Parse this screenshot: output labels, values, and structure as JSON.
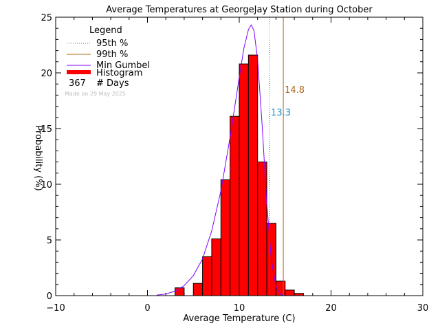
{
  "chart_data": {
    "type": "bar",
    "title": "Average Temperatures at GeorgeJay Station during October",
    "xlabel": "Average Temperature (C)",
    "ylabel": "Probability (%)",
    "xlim": [
      -10,
      30
    ],
    "ylim": [
      0,
      25
    ],
    "xticks": [
      "−10",
      "0",
      "10",
      "20",
      "30"
    ],
    "yticks": [
      "0",
      "5",
      "10",
      "15",
      "20",
      "25"
    ],
    "histogram": {
      "name": "Histogram",
      "bin_width": 1,
      "bin_starts": [
        3,
        4,
        5,
        6,
        7,
        8,
        9,
        10,
        11,
        12,
        13,
        14,
        15,
        16
      ],
      "values": [
        0.7,
        0.0,
        1.1,
        3.5,
        5.1,
        10.4,
        16.1,
        20.8,
        21.6,
        12.0,
        6.5,
        1.3,
        0.5,
        0.2
      ],
      "color": "#ff0000"
    },
    "gumbel_curve": {
      "name": "Min Gumbel",
      "color": "#8000ff",
      "x": [
        1,
        2,
        3,
        4,
        5,
        6,
        7,
        8,
        9,
        10,
        10.5,
        11,
        11.3,
        11.6,
        12,
        12.5,
        13,
        13.5,
        14,
        14.5,
        15
      ],
      "y": [
        0.05,
        0.15,
        0.4,
        0.9,
        1.8,
        3.3,
        5.8,
        9.4,
        14.2,
        19.6,
        22.2,
        23.9,
        24.3,
        23.8,
        21.2,
        15.2,
        8.3,
        3.2,
        0.8,
        0.1,
        0.0
      ]
    },
    "percentiles": [
      {
        "name": "95th %",
        "value": 13.3,
        "label": "13.3",
        "color": "#1f8fc9",
        "style": "dotted"
      },
      {
        "name": "99th %",
        "value": 14.8,
        "label": "14.8",
        "color": "#b06a1e",
        "style": "solid"
      }
    ],
    "legend": {
      "title": "Legend",
      "placement": "top-left",
      "days_count": "367",
      "days_label": "# Days",
      "made_on": "Made on 29 May 2025"
    }
  }
}
